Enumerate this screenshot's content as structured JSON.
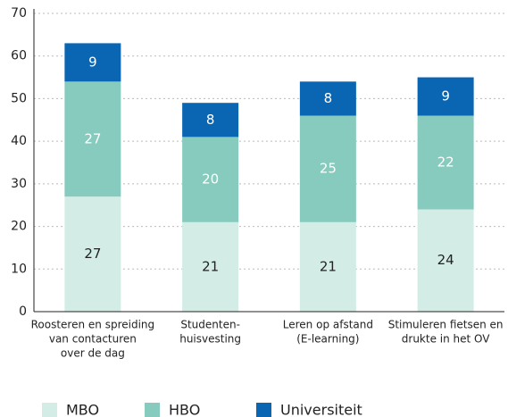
{
  "chart_data": {
    "type": "stacked-bar",
    "categories": [
      [
        "Roosteren en spreiding",
        "van contacturen",
        "over de dag"
      ],
      [
        "Studenten-",
        "huisvesting"
      ],
      [
        "Leren op afstand",
        "(E-learning)"
      ],
      [
        "Stimuleren fietsen en",
        "drukte in het OV"
      ]
    ],
    "series": [
      {
        "name": "MBO",
        "color": "#d3ede6",
        "label_color": "#222222",
        "values": [
          27,
          21,
          21,
          24
        ]
      },
      {
        "name": "HBO",
        "color": "#86cbbd",
        "label_color": "#ffffff",
        "values": [
          27,
          20,
          25,
          22
        ]
      },
      {
        "name": "Universiteit",
        "color": "#0a66b2",
        "label_color": "#ffffff",
        "values": [
          9,
          8,
          8,
          9
        ]
      }
    ],
    "ylim": [
      0,
      70
    ],
    "yticks": [
      0,
      10,
      20,
      30,
      40,
      50,
      60,
      70
    ],
    "grid": true,
    "legend": "bottom"
  }
}
